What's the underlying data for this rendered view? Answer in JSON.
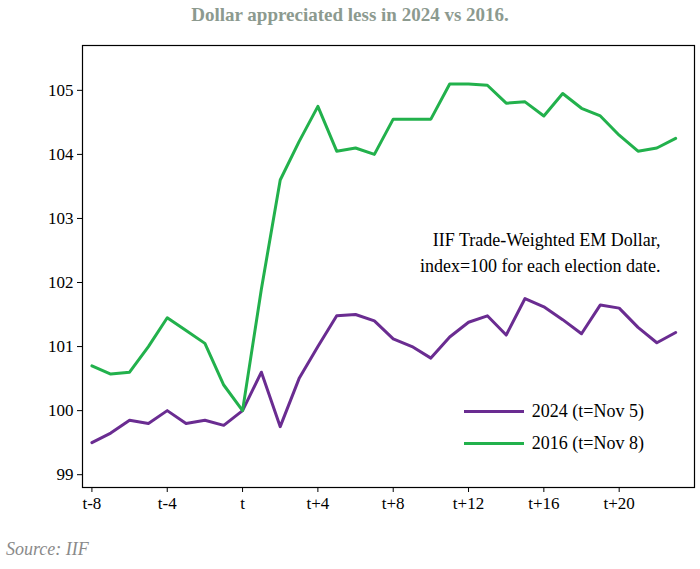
{
  "chart_data": {
    "type": "line",
    "title": "Dollar appreciated less in 2024 vs 2016.",
    "source": "Source: IIF",
    "annotation": "IIF Trade-Weighted EM Dollar,\nindex=100 for each election date.",
    "x": [
      -8,
      -7,
      -6,
      -5,
      -4,
      -3,
      -2,
      -1,
      0,
      1,
      2,
      3,
      4,
      5,
      6,
      7,
      8,
      9,
      10,
      11,
      12,
      13,
      14,
      15,
      16,
      17,
      18,
      19,
      20,
      21,
      22,
      23
    ],
    "series": [
      {
        "name": "2024 (t=Nov 5)",
        "color": "#6a2c91",
        "values": [
          99.5,
          99.65,
          99.85,
          99.8,
          100.0,
          99.8,
          99.85,
          99.77,
          100.0,
          100.6,
          99.75,
          100.5,
          101.0,
          101.48,
          101.5,
          101.4,
          101.12,
          101.0,
          100.82,
          101.15,
          101.38,
          101.48,
          101.18,
          101.75,
          101.62,
          101.42,
          101.2,
          101.65,
          101.6,
          101.3,
          101.06,
          101.22
        ]
      },
      {
        "name": "2016 (t=Nov 8)",
        "color": "#22b14c",
        "values": [
          100.7,
          100.57,
          100.6,
          101.0,
          101.45,
          101.25,
          101.05,
          100.4,
          100.0,
          101.9,
          103.6,
          104.2,
          104.75,
          104.05,
          104.1,
          104.0,
          104.55,
          104.55,
          104.55,
          105.1,
          105.1,
          105.08,
          104.8,
          104.82,
          104.6,
          104.95,
          104.72,
          104.6,
          104.3,
          104.05,
          104.1,
          104.25
        ]
      }
    ],
    "xlim": [
      -8.5,
      24
    ],
    "xticks": [
      {
        "value": -8,
        "label": "t-8"
      },
      {
        "value": -4,
        "label": "t-4"
      },
      {
        "value": 0,
        "label": "t"
      },
      {
        "value": 4,
        "label": "t+4"
      },
      {
        "value": 8,
        "label": "t+8"
      },
      {
        "value": 12,
        "label": "t+12"
      },
      {
        "value": 16,
        "label": "t+16"
      },
      {
        "value": 20,
        "label": "t+20"
      }
    ],
    "ylim": [
      98.8,
      105.7
    ],
    "yticks": [
      99,
      100,
      101,
      102,
      103,
      104,
      105
    ],
    "grid": false,
    "legend": "lower right"
  }
}
